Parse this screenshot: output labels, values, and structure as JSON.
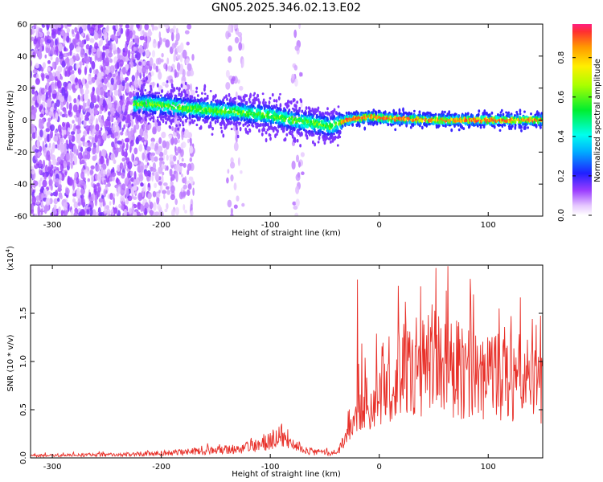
{
  "title": "GN05.2025.346.02.13.E02",
  "colors": {
    "snr_line": "#e8312a"
  },
  "chart_data": [
    {
      "type": "heatmap",
      "xlabel": "Height of straight line (km)",
      "ylabel": "Frequency (Hz)",
      "xlim": [
        -320,
        150
      ],
      "ylim": [
        -60,
        60
      ],
      "x_ticks": [
        -300,
        -200,
        -100,
        0,
        100
      ],
      "y_ticks": [
        -60,
        -40,
        -20,
        0,
        20,
        40,
        60
      ],
      "colorbar": {
        "label": "Normalized spectral amplitude",
        "range": [
          0,
          0.97
        ],
        "ticks": [
          "0.0",
          "0.2",
          "0.4",
          "0.6",
          "0.8"
        ],
        "colormap": "rainbow"
      },
      "ridge": {
        "x": [
          -210,
          -170,
          -130,
          -100,
          -80,
          -60,
          -45,
          -30,
          -10,
          10,
          50,
          100,
          150
        ],
        "y": [
          10,
          7,
          5,
          3,
          0,
          -2,
          -4,
          0,
          2,
          1,
          0,
          0,
          0
        ]
      },
      "noise_regions": [
        {
          "x_range": [
            -320,
            -210
          ],
          "density": "high"
        },
        {
          "x_range": [
            -210,
            -170
          ],
          "density": "medium"
        },
        {
          "x_range": [
            -140,
            -125
          ],
          "density": "low"
        },
        {
          "x_range": [
            -80,
            -70
          ],
          "density": "low"
        }
      ]
    },
    {
      "type": "line",
      "xlabel": "Height of straight line (km)",
      "ylabel": "SNR (10 * v/v)",
      "scale_label": "(x10",
      "scale_exp": "4",
      "xlim": [
        -320,
        150
      ],
      "ylim": [
        0,
        2.0
      ],
      "x_ticks": [
        -300,
        -200,
        -100,
        0,
        100
      ],
      "y_ticks": [
        "0.0",
        "0.5",
        "1.0",
        "1.5"
      ],
      "envelope": {
        "x": [
          -320,
          -250,
          -200,
          -150,
          -130,
          -110,
          -100,
          -90,
          -70,
          -60,
          -40,
          -28,
          -22,
          -18,
          -10,
          0,
          20,
          40,
          50,
          60,
          80,
          100,
          120,
          140,
          150
        ],
        "y": [
          0.03,
          0.04,
          0.06,
          0.1,
          0.12,
          0.17,
          0.25,
          0.22,
          0.12,
          0.08,
          0.05,
          0.3,
          0.5,
          0.75,
          0.7,
          0.95,
          1.1,
          1.2,
          1.3,
          1.2,
          1.1,
          1.1,
          1.0,
          0.9,
          0.85
        ]
      },
      "peaks": [
        {
          "x": -20,
          "y": 1.85
        },
        {
          "x": 38,
          "y": 1.78
        },
        {
          "x": 52,
          "y": 1.97
        },
        {
          "x": 110,
          "y": 1.55
        }
      ]
    }
  ]
}
